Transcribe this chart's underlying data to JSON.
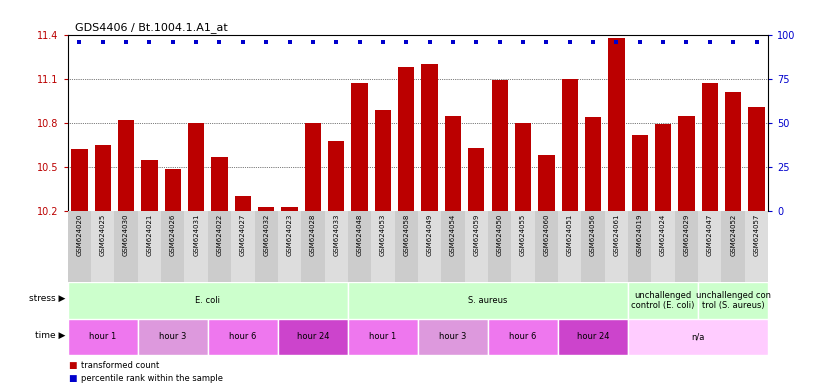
{
  "title": "GDS4406 / Bt.1004.1.A1_at",
  "samples": [
    "GSM624020",
    "GSM624025",
    "GSM624030",
    "GSM624021",
    "GSM624026",
    "GSM624031",
    "GSM624022",
    "GSM624027",
    "GSM624032",
    "GSM624023",
    "GSM624028",
    "GSM624033",
    "GSM624048",
    "GSM624053",
    "GSM624058",
    "GSM624049",
    "GSM624054",
    "GSM624059",
    "GSM624050",
    "GSM624055",
    "GSM624060",
    "GSM624051",
    "GSM624056",
    "GSM624061",
    "GSM624019",
    "GSM624024",
    "GSM624029",
    "GSM624047",
    "GSM624052",
    "GSM624057"
  ],
  "transformed_count": [
    10.62,
    10.65,
    10.82,
    10.55,
    10.49,
    10.8,
    10.57,
    10.3,
    10.23,
    10.23,
    10.8,
    10.68,
    11.07,
    10.89,
    11.18,
    11.2,
    10.85,
    10.63,
    11.09,
    10.8,
    10.58,
    11.1,
    10.84,
    11.38,
    10.72,
    10.79,
    10.85,
    11.07,
    11.01,
    10.91
  ],
  "bar_color": "#BB0000",
  "dot_color": "#0000CC",
  "ylim_left": [
    10.2,
    11.4
  ],
  "ylim_right": [
    0,
    100
  ],
  "yticks_left": [
    10.2,
    10.5,
    10.8,
    11.1,
    11.4
  ],
  "yticks_right": [
    0,
    25,
    50,
    75,
    100
  ],
  "stress_groups": [
    {
      "label": "E. coli",
      "start": 0,
      "end": 12,
      "color": "#CCFFCC"
    },
    {
      "label": "S. aureus",
      "start": 12,
      "end": 24,
      "color": "#CCFFCC"
    },
    {
      "label": "unchallenged\ncontrol (E. coli)",
      "start": 24,
      "end": 27,
      "color": "#CCFFCC"
    },
    {
      "label": "unchallenged con\ntrol (S. aureus)",
      "start": 27,
      "end": 30,
      "color": "#CCFFCC"
    }
  ],
  "time_groups": [
    {
      "label": "hour 1",
      "start": 0,
      "end": 3,
      "color": "#EE77EE"
    },
    {
      "label": "hour 3",
      "start": 3,
      "end": 6,
      "color": "#DD99DD"
    },
    {
      "label": "hour 6",
      "start": 6,
      "end": 9,
      "color": "#EE77EE"
    },
    {
      "label": "hour 24",
      "start": 9,
      "end": 12,
      "color": "#CC44CC"
    },
    {
      "label": "hour 1",
      "start": 12,
      "end": 15,
      "color": "#EE77EE"
    },
    {
      "label": "hour 3",
      "start": 15,
      "end": 18,
      "color": "#DD99DD"
    },
    {
      "label": "hour 6",
      "start": 18,
      "end": 21,
      "color": "#EE77EE"
    },
    {
      "label": "hour 24",
      "start": 21,
      "end": 24,
      "color": "#CC44CC"
    },
    {
      "label": "n/a",
      "start": 24,
      "end": 30,
      "color": "#FFCCFF"
    }
  ],
  "bg_xlabels_even": "#CCCCCC",
  "bg_xlabels_odd": "#DDDDDD",
  "background_color": "#FFFFFF"
}
